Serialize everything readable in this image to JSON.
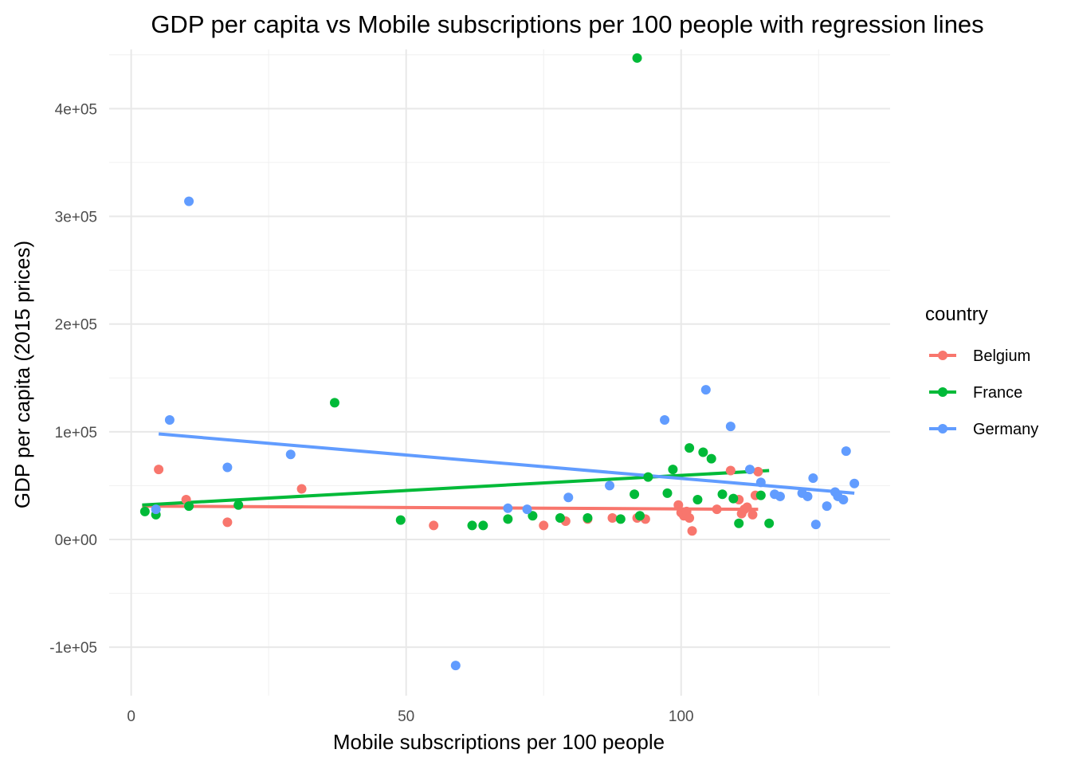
{
  "chart_data": {
    "type": "scatter",
    "title": "GDP per capita vs Mobile subscriptions per 100 people with regression lines",
    "xlabel": "Mobile subscriptions per 100 people",
    "ylabel": "GDP per capita (2015 prices)",
    "xlim": [
      -4,
      138
    ],
    "ylim": [
      -145000,
      455000
    ],
    "x_ticks": [
      0,
      50,
      100
    ],
    "x_tick_labels": [
      "0",
      "50",
      "100"
    ],
    "x_minor_ticks": [
      25,
      75,
      125
    ],
    "y_ticks": [
      -100000,
      0,
      100000,
      200000,
      300000,
      400000
    ],
    "y_tick_labels": [
      "-1e+05",
      "0e+00",
      "1e+05",
      "2e+05",
      "3e+05",
      "4e+05"
    ],
    "y_minor_ticks": [
      -50000,
      50000,
      150000,
      250000,
      350000,
      450000
    ],
    "grid": true,
    "legend": {
      "title": "country",
      "position": "right"
    },
    "series": [
      {
        "name": "Belgium",
        "color": "#F8766D",
        "points": [
          [
            5,
            65000
          ],
          [
            10,
            37000
          ],
          [
            17.5,
            16000
          ],
          [
            31,
            47000
          ],
          [
            55,
            13000
          ],
          [
            75,
            13000
          ],
          [
            79,
            17000
          ],
          [
            83,
            19000
          ],
          [
            87.5,
            20000
          ],
          [
            92,
            20000
          ],
          [
            93.5,
            19000
          ],
          [
            99.5,
            32000
          ],
          [
            100,
            25000
          ],
          [
            100.5,
            22000
          ],
          [
            101,
            26000
          ],
          [
            101.5,
            20000
          ],
          [
            102,
            8000
          ],
          [
            106.5,
            28000
          ],
          [
            109,
            64000
          ],
          [
            110.5,
            37000
          ],
          [
            111,
            24000
          ],
          [
            111.5,
            28000
          ],
          [
            112,
            30000
          ],
          [
            113,
            23000
          ],
          [
            113.5,
            41000
          ],
          [
            114,
            63000
          ]
        ],
        "regression": [
          [
            2,
            31000
          ],
          [
            114,
            28000
          ]
        ]
      },
      {
        "name": "France",
        "color": "#00BA38",
        "points": [
          [
            2.5,
            26000
          ],
          [
            4.5,
            23000
          ],
          [
            10.5,
            31000
          ],
          [
            19.5,
            32000
          ],
          [
            37,
            127000
          ],
          [
            49,
            18000
          ],
          [
            62,
            13000
          ],
          [
            64,
            13000
          ],
          [
            68.5,
            19000
          ],
          [
            73,
            22000
          ],
          [
            78,
            20000
          ],
          [
            83,
            20000
          ],
          [
            89,
            19000
          ],
          [
            91.5,
            42000
          ],
          [
            92,
            447000
          ],
          [
            92.5,
            22000
          ],
          [
            94,
            58000
          ],
          [
            97.5,
            43000
          ],
          [
            98.5,
            65000
          ],
          [
            101.5,
            85000
          ],
          [
            103,
            37000
          ],
          [
            104,
            81000
          ],
          [
            105.5,
            75000
          ],
          [
            107.5,
            42000
          ],
          [
            109.5,
            38000
          ],
          [
            110.5,
            15000
          ],
          [
            114.5,
            41000
          ],
          [
            116,
            15000
          ]
        ],
        "regression": [
          [
            2,
            32000
          ],
          [
            116,
            64000
          ]
        ]
      },
      {
        "name": "Germany",
        "color": "#619CFF",
        "points": [
          [
            4.5,
            28000
          ],
          [
            7,
            111000
          ],
          [
            10.5,
            314000
          ],
          [
            17.5,
            67000
          ],
          [
            29,
            79000
          ],
          [
            59,
            -117000
          ],
          [
            68.5,
            29000
          ],
          [
            72,
            28000
          ],
          [
            79.5,
            39000
          ],
          [
            87,
            50000
          ],
          [
            97,
            111000
          ],
          [
            104.5,
            139000
          ],
          [
            109,
            105000
          ],
          [
            112.5,
            65000
          ],
          [
            114.5,
            53000
          ],
          [
            117,
            42000
          ],
          [
            118,
            40000
          ],
          [
            122,
            43000
          ],
          [
            123,
            40000
          ],
          [
            124,
            57000
          ],
          [
            124.5,
            14000
          ],
          [
            126.5,
            31000
          ],
          [
            128,
            44000
          ],
          [
            128.5,
            40000
          ],
          [
            129.5,
            37000
          ],
          [
            130,
            82000
          ],
          [
            131.5,
            52000
          ]
        ],
        "regression": [
          [
            5,
            98000
          ],
          [
            131.5,
            43000
          ]
        ]
      }
    ]
  }
}
